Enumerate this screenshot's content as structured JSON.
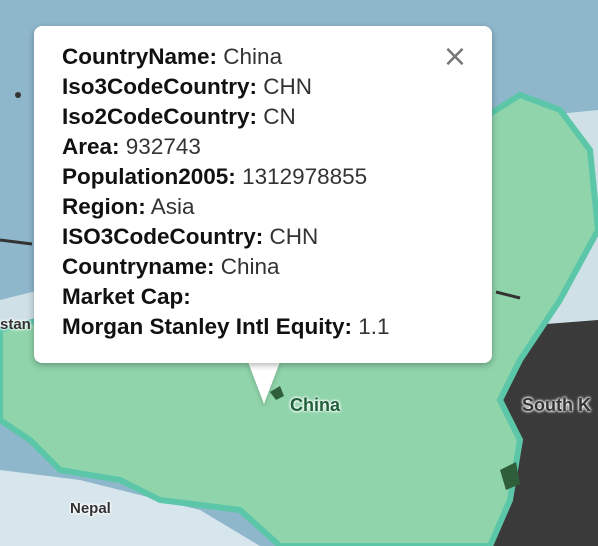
{
  "popup": {
    "close_icon": "close-icon",
    "rows": [
      {
        "key": "CountryName:",
        "value": "China"
      },
      {
        "key": "Iso3CodeCountry:",
        "value": "CHN"
      },
      {
        "key": "Iso2CodeCountry:",
        "value": "CN"
      },
      {
        "key": "Area:",
        "value": "932743"
      },
      {
        "key": "Population2005:",
        "value": "1312978855"
      },
      {
        "key": "Region:",
        "value": "Asia"
      },
      {
        "key": "ISO3CodeCountry:",
        "value": "CHN"
      },
      {
        "key": "Countryname:",
        "value": "China"
      },
      {
        "key": "Market Cap:",
        "value": ""
      },
      {
        "key": "Morgan Stanley Intl Equity:",
        "value": "1.1"
      }
    ]
  },
  "map": {
    "labels": {
      "china": "China",
      "south_korea": "South K",
      "nepal": "Nepal",
      "stan": "stan"
    },
    "colors": {
      "water": "#8fb7cc",
      "land_fill": "#8fd4ab",
      "land_border": "#5cc7a8",
      "dark_region": "#3a3a3a"
    }
  }
}
